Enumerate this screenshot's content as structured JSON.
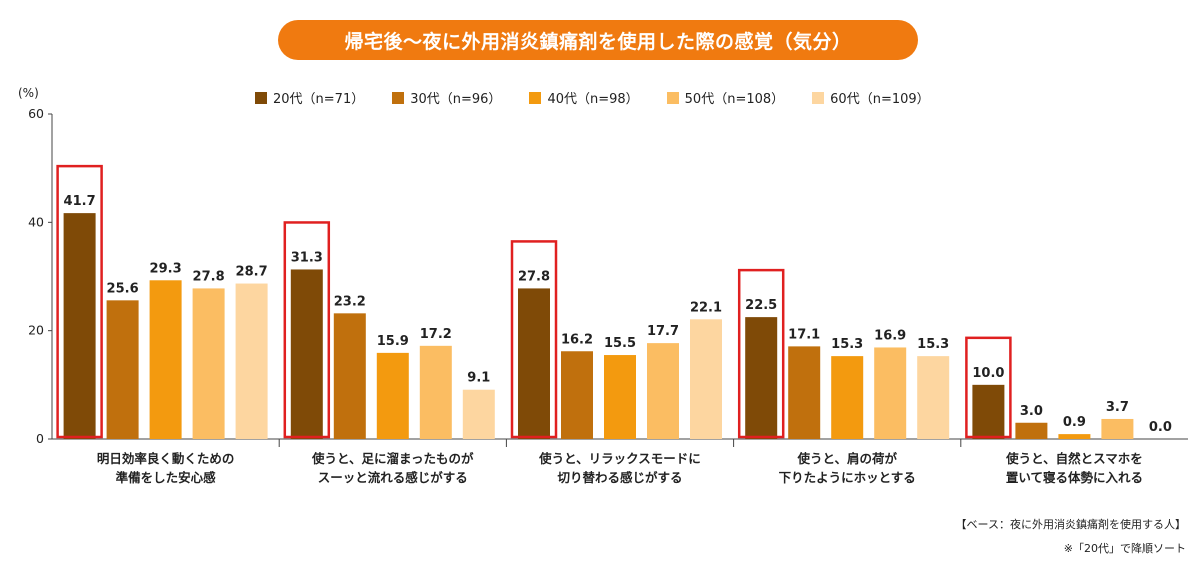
{
  "title": "帰宅後～夜に外用消炎鎮痛剤を使用した際の感覚（気分）",
  "unit": "(%)",
  "footnote1": "【ベース：夜に外用消炎鎮痛剤を使用する人】",
  "footnote2": "※「20代」で降順ソート",
  "chart_data": {
    "type": "bar",
    "title": "帰宅後～夜に外用消炎鎮痛剤を使用した際の感覚（気分）",
    "ylabel": "(%)",
    "ylim": [
      0,
      60
    ],
    "yticks": [
      0,
      20,
      40,
      60
    ],
    "categories": [
      [
        "明日効率良く動くための",
        "準備をした安心感"
      ],
      [
        "使うと、足に溜まったものが",
        "スーッと流れる感じがする"
      ],
      [
        "使うと、リラックスモードに",
        "切り替わる感じがする"
      ],
      [
        "使うと、肩の荷が",
        "下りたようにホッとする"
      ],
      [
        "使うと、自然とスマホを",
        "置いて寝る体勢に入れる"
      ]
    ],
    "series": [
      {
        "name": "20代（n=71）",
        "color": "#7f4a07",
        "values": [
          41.7,
          31.3,
          27.8,
          22.5,
          10.0
        ]
      },
      {
        "name": "30代（n=96）",
        "color": "#c0700d",
        "values": [
          25.6,
          23.2,
          16.2,
          17.1,
          3.0
        ]
      },
      {
        "name": "40代（n=98）",
        "color": "#f39a0f",
        "values": [
          29.3,
          15.9,
          15.5,
          15.3,
          0.9
        ]
      },
      {
        "name": "50代（n=108）",
        "color": "#fbbd62",
        "values": [
          27.8,
          17.2,
          17.7,
          16.9,
          3.7
        ]
      },
      {
        "name": "60代（n=109）",
        "color": "#fdd6a0",
        "values": [
          28.7,
          9.1,
          22.1,
          15.3,
          0.0
        ]
      }
    ],
    "value_labels": [
      [
        "41.7",
        "25.6",
        "29.3",
        "27.8",
        "28.7"
      ],
      [
        "31.3",
        "23.2",
        "15.9",
        "17.2",
        "9.1"
      ],
      [
        "27.8",
        "16.2",
        "15.5",
        "17.7",
        "22.1"
      ],
      [
        "22.5",
        "17.1",
        "15.3",
        "16.9",
        "15.3"
      ],
      [
        "10.0",
        "3.0",
        "0.9",
        "3.7",
        "0.0"
      ]
    ],
    "highlight_series": 0,
    "highlight_color": "#e02020",
    "legend_position": "top",
    "grid": false
  }
}
